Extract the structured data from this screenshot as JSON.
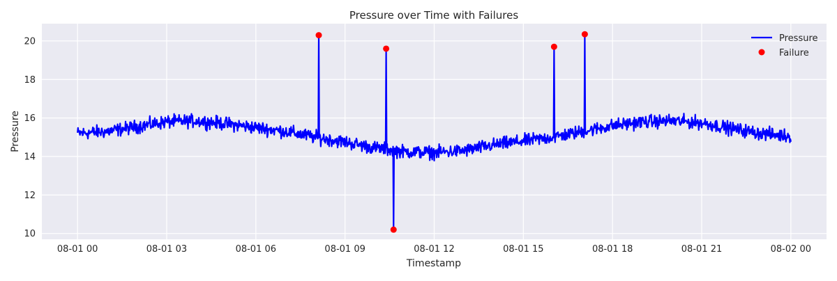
{
  "chart_data": {
    "type": "line",
    "title": "Pressure over Time with Failures",
    "xlabel": "Timestamp",
    "ylabel": "Pressure",
    "x_ticks": [
      "08-01 00",
      "08-01 03",
      "08-01 06",
      "08-01 09",
      "08-01 12",
      "08-01 15",
      "08-01 18",
      "08-01 21",
      "08-02 00"
    ],
    "x_tick_hours": [
      0,
      3,
      6,
      9,
      12,
      15,
      18,
      21,
      24
    ],
    "xlim_hours": [
      -1.2,
      25.2
    ],
    "y_ticks": [
      10,
      12,
      14,
      16,
      18,
      20
    ],
    "ylim": [
      9.7,
      20.9
    ],
    "grid": true,
    "legend_position": "top-right",
    "series": [
      {
        "name": "Pressure",
        "kind": "line",
        "color": "#0000ff",
        "baseline_points": [
          [
            0,
            15.2
          ],
          [
            1,
            15.3
          ],
          [
            2,
            15.55
          ],
          [
            3,
            15.8
          ],
          [
            4,
            15.85
          ],
          [
            5,
            15.7
          ],
          [
            6,
            15.5
          ],
          [
            7,
            15.3
          ],
          [
            8,
            15.0
          ],
          [
            9,
            14.75
          ],
          [
            10,
            14.45
          ],
          [
            11,
            14.25
          ],
          [
            12,
            14.2
          ],
          [
            13,
            14.3
          ],
          [
            14,
            14.6
          ],
          [
            15,
            14.8
          ],
          [
            16,
            15.0
          ],
          [
            17,
            15.3
          ],
          [
            18,
            15.6
          ],
          [
            19,
            15.8
          ],
          [
            20,
            15.85
          ],
          [
            21,
            15.75
          ],
          [
            22,
            15.45
          ],
          [
            23,
            15.2
          ],
          [
            24,
            15.05
          ]
        ],
        "noise_amplitude": 0.5,
        "sample_interval_minutes": 1,
        "spikes": [
          {
            "timestamp": "08-01 08:07",
            "value": 20.3
          },
          {
            "timestamp": "08-01 10:23",
            "value": 19.6
          },
          {
            "timestamp": "08-01 10:38",
            "value": 10.2
          },
          {
            "timestamp": "08-01 16:02",
            "value": 19.7
          },
          {
            "timestamp": "08-01 17:04",
            "value": 20.35
          }
        ]
      },
      {
        "name": "Failure",
        "kind": "scatter",
        "color": "#ff0000",
        "points": [
          {
            "timestamp": "08-01 08:07",
            "value": 20.3
          },
          {
            "timestamp": "08-01 10:23",
            "value": 19.6
          },
          {
            "timestamp": "08-01 10:38",
            "value": 10.2
          },
          {
            "timestamp": "08-01 16:02",
            "value": 19.7
          },
          {
            "timestamp": "08-01 17:04",
            "value": 20.35
          }
        ]
      }
    ]
  },
  "colors": {
    "plot_background": "#eaeaf2",
    "grid": "#ffffff",
    "pressure_line": "#0000ff",
    "failure_marker": "#ff0000"
  }
}
